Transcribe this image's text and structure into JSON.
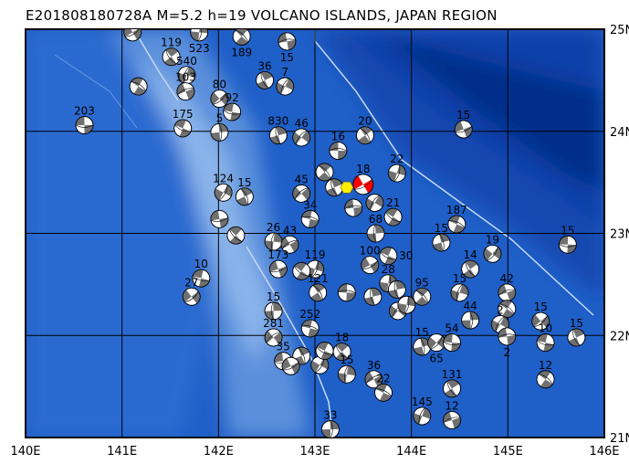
{
  "title": "E201808180728A M=5.2 h=19 VOLCANO ISLANDS, JAPAN REGION",
  "map": {
    "lon_range": [
      140,
      146
    ],
    "lat_range": [
      21,
      25
    ],
    "lon_ticks": [
      "140E",
      "141E",
      "142E",
      "143E",
      "144E",
      "145E",
      "146E"
    ],
    "lat_ticks": [
      "21N",
      "22N",
      "23N",
      "24N",
      "25N"
    ],
    "colors": {
      "deep": "#0a3fa8",
      "mid": "#1f5fc8",
      "shallow": "#5a8fdc",
      "ridge": "#8ab4ea",
      "plate_boundary": "#c8d8f0",
      "ball_fill": "#707070",
      "main_event": "#ff0000",
      "epicenter": "#ffee00"
    }
  },
  "main_event": {
    "lon": 143.5,
    "lat": 23.48,
    "label": "18"
  },
  "epicenter": {
    "lon": 143.33,
    "lat": 23.45
  },
  "events": [
    {
      "lon": 140.61,
      "lat": 24.06,
      "label": "203"
    },
    {
      "lon": 141.51,
      "lat": 24.73,
      "label": "119"
    },
    {
      "lon": 141.67,
      "lat": 24.55,
      "label": "540"
    },
    {
      "lon": 141.66,
      "lat": 24.39,
      "label": "103"
    },
    {
      "lon": 141.17,
      "lat": 24.44,
      "label": ""
    },
    {
      "lon": 142.01,
      "lat": 23.99,
      "label": "5"
    },
    {
      "lon": 142.01,
      "lat": 24.32,
      "label": "80"
    },
    {
      "lon": 142.14,
      "lat": 24.19,
      "label": "92"
    },
    {
      "lon": 142.48,
      "lat": 24.5,
      "label": "36"
    },
    {
      "lon": 142.69,
      "lat": 24.44,
      "label": "7"
    },
    {
      "lon": 142.71,
      "lat": 24.88,
      "label": "15"
    },
    {
      "lon": 142.24,
      "lat": 24.93,
      "label": "189"
    },
    {
      "lon": 141.8,
      "lat": 24.97,
      "label": "523"
    },
    {
      "lon": 141.11,
      "lat": 24.97,
      "label": ""
    },
    {
      "lon": 141.63,
      "lat": 24.03,
      "label": "175"
    },
    {
      "lon": 142.62,
      "lat": 23.96,
      "label": "830"
    },
    {
      "lon": 142.86,
      "lat": 23.94,
      "label": "46"
    },
    {
      "lon": 143.24,
      "lat": 23.81,
      "label": "16"
    },
    {
      "lon": 143.52,
      "lat": 23.96,
      "label": "20"
    },
    {
      "lon": 143.85,
      "lat": 23.59,
      "label": "22"
    },
    {
      "lon": 144.54,
      "lat": 24.02,
      "label": "15"
    },
    {
      "lon": 143.81,
      "lat": 23.16,
      "label": "21"
    },
    {
      "lon": 143.63,
      "lat": 23.0,
      "label": "68"
    },
    {
      "lon": 142.86,
      "lat": 23.39,
      "label": "45"
    },
    {
      "lon": 142.95,
      "lat": 23.14,
      "label": "34"
    },
    {
      "lon": 142.27,
      "lat": 23.36,
      "label": "15"
    },
    {
      "lon": 142.05,
      "lat": 23.4,
      "label": "124"
    },
    {
      "lon": 142.01,
      "lat": 23.14,
      "label": ""
    },
    {
      "lon": 142.18,
      "lat": 22.98,
      "label": ""
    },
    {
      "lon": 142.57,
      "lat": 22.92,
      "label": "26"
    },
    {
      "lon": 142.74,
      "lat": 22.89,
      "label": "43"
    },
    {
      "lon": 144.47,
      "lat": 23.09,
      "label": "187"
    },
    {
      "lon": 144.31,
      "lat": 22.91,
      "label": "15"
    },
    {
      "lon": 144.84,
      "lat": 22.8,
      "label": "19"
    },
    {
      "lon": 145.62,
      "lat": 22.89,
      "label": "15"
    },
    {
      "lon": 144.61,
      "lat": 22.65,
      "label": "14"
    },
    {
      "lon": 144.5,
      "lat": 22.42,
      "label": "15"
    },
    {
      "lon": 144.99,
      "lat": 22.42,
      "label": "42"
    },
    {
      "lon": 144.99,
      "lat": 22.26,
      "label": ""
    },
    {
      "lon": 144.61,
      "lat": 22.15,
      "label": "44"
    },
    {
      "lon": 145.34,
      "lat": 22.14,
      "label": "15"
    },
    {
      "lon": 145.39,
      "lat": 21.93,
      "label": "10"
    },
    {
      "lon": 145.71,
      "lat": 21.98,
      "label": "15"
    },
    {
      "lon": 144.92,
      "lat": 22.11,
      "label": "2"
    },
    {
      "lon": 144.99,
      "lat": 21.99,
      "label": "2"
    },
    {
      "lon": 144.11,
      "lat": 22.38,
      "label": "95"
    },
    {
      "lon": 143.76,
      "lat": 22.51,
      "label": "28"
    },
    {
      "lon": 143.57,
      "lat": 22.69,
      "label": "100"
    },
    {
      "lon": 143.76,
      "lat": 22.78,
      "label": "30"
    },
    {
      "lon": 143.6,
      "lat": 22.38,
      "label": ""
    },
    {
      "lon": 143.86,
      "lat": 22.24,
      "label": ""
    },
    {
      "lon": 143.33,
      "lat": 22.42,
      "label": ""
    },
    {
      "lon": 143.03,
      "lat": 22.42,
      "label": "121"
    },
    {
      "lon": 143.0,
      "lat": 22.65,
      "label": "119"
    },
    {
      "lon": 142.62,
      "lat": 22.65,
      "label": "173"
    },
    {
      "lon": 142.86,
      "lat": 22.63,
      "label": ""
    },
    {
      "lon": 142.57,
      "lat": 22.24,
      "label": "15"
    },
    {
      "lon": 142.57,
      "lat": 21.98,
      "label": "281"
    },
    {
      "lon": 142.95,
      "lat": 22.07,
      "label": "252"
    },
    {
      "lon": 142.86,
      "lat": 21.8,
      "label": ""
    },
    {
      "lon": 143.05,
      "lat": 21.71,
      "label": ""
    },
    {
      "lon": 142.67,
      "lat": 21.75,
      "label": "35"
    },
    {
      "lon": 143.28,
      "lat": 21.84,
      "label": "18"
    },
    {
      "lon": 143.33,
      "lat": 21.62,
      "label": "15"
    },
    {
      "lon": 143.61,
      "lat": 21.57,
      "label": "36"
    },
    {
      "lon": 143.71,
      "lat": 21.44,
      "label": "22"
    },
    {
      "lon": 144.11,
      "lat": 21.89,
      "label": "15"
    },
    {
      "lon": 144.26,
      "lat": 21.93,
      "label": "65"
    },
    {
      "lon": 144.42,
      "lat": 21.93,
      "label": "54"
    },
    {
      "lon": 144.42,
      "lat": 21.48,
      "label": "131"
    },
    {
      "lon": 144.11,
      "lat": 21.21,
      "label": "145"
    },
    {
      "lon": 144.42,
      "lat": 21.17,
      "label": "12"
    },
    {
      "lon": 145.39,
      "lat": 21.57,
      "label": "12"
    },
    {
      "lon": 143.16,
      "lat": 21.08,
      "label": "33"
    },
    {
      "lon": 141.72,
      "lat": 22.38,
      "label": "27"
    },
    {
      "lon": 141.82,
      "lat": 22.56,
      "label": "10"
    },
    {
      "lon": 143.2,
      "lat": 23.45,
      "label": ""
    },
    {
      "lon": 143.62,
      "lat": 23.3,
      "label": ""
    },
    {
      "lon": 143.4,
      "lat": 23.25,
      "label": ""
    },
    {
      "lon": 143.1,
      "lat": 23.6,
      "label": ""
    },
    {
      "lon": 143.95,
      "lat": 22.3,
      "label": ""
    },
    {
      "lon": 142.75,
      "lat": 21.7,
      "label": ""
    },
    {
      "lon": 143.1,
      "lat": 21.85,
      "label": ""
    },
    {
      "lon": 143.85,
      "lat": 22.45,
      "label": ""
    }
  ]
}
